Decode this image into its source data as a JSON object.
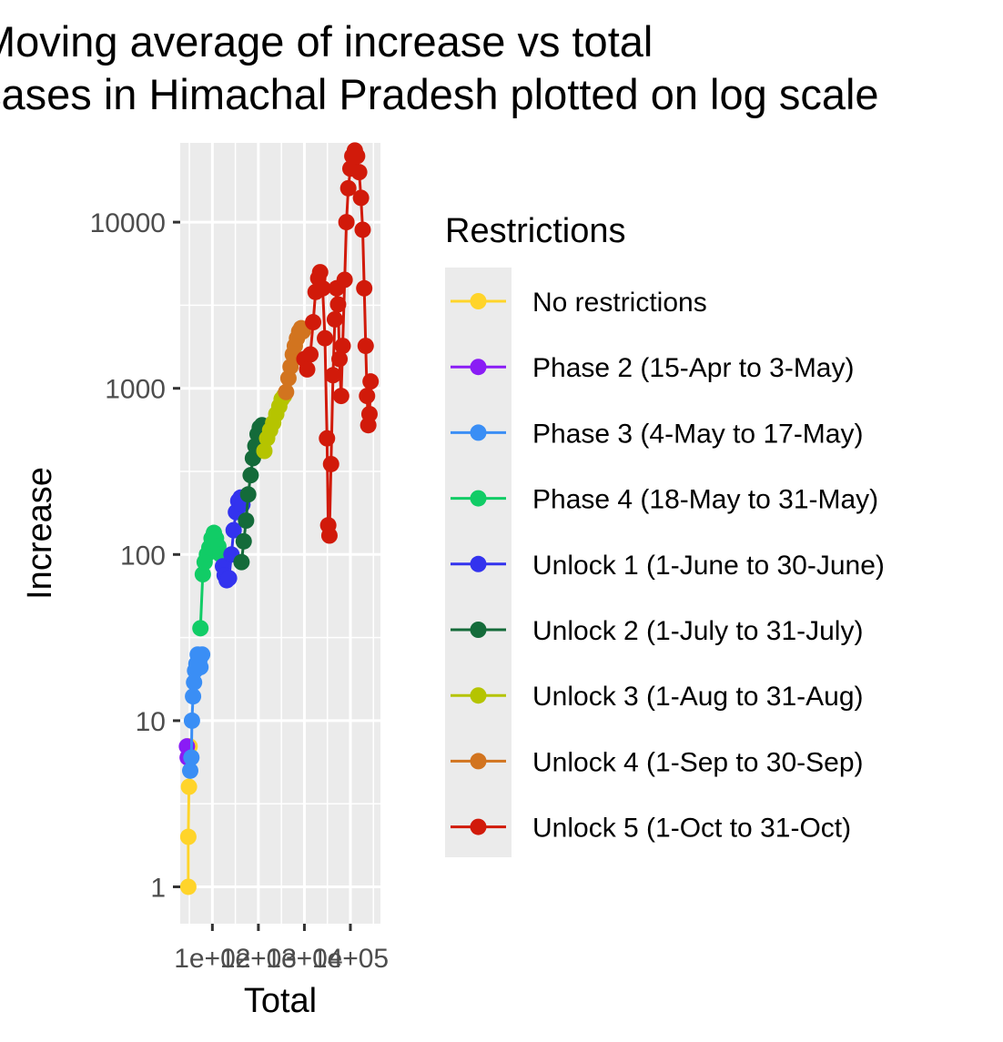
{
  "chart_data": {
    "type": "scatter",
    "title_lines": [
      "Moving average of increase vs total",
      "cases in Himachal Pradesh plotted on log scale"
    ],
    "xlabel": "Total",
    "ylabel": "Increase",
    "x_scale": "log10",
    "y_scale": "log10",
    "xlim": [
      20,
      450000
    ],
    "ylim": [
      0.6,
      30000
    ],
    "x_ticks": [
      100,
      1000,
      10000,
      100000
    ],
    "x_tick_labels": [
      "1e+02",
      "1e+03",
      "1e+04",
      "1e+05"
    ],
    "y_ticks": [
      1,
      10,
      100,
      1000,
      10000
    ],
    "y_tick_labels": [
      "1",
      "10",
      "100",
      "1000",
      "10000"
    ],
    "grid": true,
    "legend": {
      "title": "Restrictions",
      "placement": "right"
    },
    "series": [
      {
        "name": "No restrictions",
        "color": "#ffd42a",
        "points": [
          [
            30,
            1
          ],
          [
            30,
            2
          ],
          [
            31,
            4
          ],
          [
            32,
            6
          ],
          [
            32,
            7
          ]
        ]
      },
      {
        "name": "Phase 2 (15-Apr to 3-May)",
        "color": "#8a1cf5",
        "points": [
          [
            28,
            7
          ],
          [
            29,
            6
          ],
          [
            30,
            6
          ],
          [
            31,
            6
          ],
          [
            32,
            6
          ],
          [
            33,
            6
          ]
        ]
      },
      {
        "name": "Phase 3 (4-May to 17-May)",
        "color": "#3a8ef5",
        "points": [
          [
            33,
            5
          ],
          [
            35,
            6
          ],
          [
            36,
            10
          ],
          [
            38,
            14
          ],
          [
            40,
            17
          ],
          [
            42,
            20
          ],
          [
            45,
            22
          ],
          [
            48,
            25
          ],
          [
            52,
            23
          ],
          [
            55,
            21
          ],
          [
            60,
            25
          ]
        ]
      },
      {
        "name": "Phase 4 (18-May to 31-May)",
        "color": "#11cc66",
        "points": [
          [
            55,
            36
          ],
          [
            62,
            76
          ],
          [
            68,
            90
          ],
          [
            76,
            100
          ],
          [
            86,
            110
          ],
          [
            96,
            125
          ],
          [
            108,
            135
          ],
          [
            120,
            125
          ],
          [
            135,
            112
          ],
          [
            150,
            100
          ]
        ]
      },
      {
        "name": "Unlock 1 (1-June to 30-June)",
        "color": "#3333ee",
        "points": [
          [
            170,
            85
          ],
          [
            185,
            75
          ],
          [
            205,
            70
          ],
          [
            230,
            72
          ],
          [
            260,
            100
          ],
          [
            290,
            140
          ],
          [
            325,
            180
          ],
          [
            365,
            210
          ],
          [
            410,
            220
          ],
          [
            450,
            200
          ]
        ]
      },
      {
        "name": "Unlock 2 (1-July to 31-July)",
        "color": "#146b3a",
        "points": [
          [
            430,
            90
          ],
          [
            480,
            120
          ],
          [
            540,
            160
          ],
          [
            600,
            230
          ],
          [
            680,
            300
          ],
          [
            760,
            380
          ],
          [
            860,
            450
          ],
          [
            960,
            530
          ],
          [
            1070,
            580
          ],
          [
            1200,
            600
          ]
        ]
      },
      {
        "name": "Unlock 3 (1-Aug to 31-Aug)",
        "color": "#b5c400",
        "points": [
          [
            1350,
            420
          ],
          [
            1550,
            500
          ],
          [
            1800,
            560
          ],
          [
            2100,
            620
          ],
          [
            2450,
            700
          ],
          [
            2850,
            780
          ],
          [
            3200,
            860
          ],
          [
            3600,
            900
          ]
        ]
      },
      {
        "name": "Unlock 4 (1-Sep to 30-Sep)",
        "color": "#d2741f",
        "points": [
          [
            4000,
            950
          ],
          [
            4500,
            1150
          ],
          [
            5000,
            1350
          ],
          [
            5600,
            1600
          ],
          [
            6200,
            1800
          ],
          [
            6900,
            2000
          ],
          [
            7700,
            2200
          ],
          [
            8500,
            2300
          ],
          [
            9200,
            2200
          ]
        ]
      },
      {
        "name": "Unlock 5 (1-Oct to 31-Oct)",
        "color": "#d11a0a",
        "points": [
          [
            10000,
            1500
          ],
          [
            11500,
            1300
          ],
          [
            13500,
            1600
          ],
          [
            15500,
            2500
          ],
          [
            17500,
            3800
          ],
          [
            20000,
            4600
          ],
          [
            22000,
            5000
          ],
          [
            25000,
            4000
          ],
          [
            28000,
            2000
          ],
          [
            31000,
            500
          ],
          [
            33000,
            150
          ],
          [
            35000,
            130
          ],
          [
            38000,
            350
          ],
          [
            42000,
            1200
          ],
          [
            46000,
            2600
          ],
          [
            50000,
            4000
          ],
          [
            54000,
            3200
          ],
          [
            58000,
            1500
          ],
          [
            63000,
            900
          ],
          [
            68000,
            1800
          ],
          [
            75000,
            4500
          ],
          [
            82000,
            10000
          ],
          [
            90000,
            16000
          ],
          [
            100000,
            21000
          ],
          [
            110000,
            25000
          ],
          [
            125000,
            27000
          ],
          [
            140000,
            25000
          ],
          [
            155000,
            20000
          ],
          [
            170000,
            14000
          ],
          [
            185000,
            9000
          ],
          [
            200000,
            4000
          ],
          [
            215000,
            1800
          ],
          [
            230000,
            900
          ],
          [
            245000,
            600
          ],
          [
            260000,
            700
          ],
          [
            275000,
            1100
          ]
        ]
      }
    ]
  },
  "colors": {
    "panel_background": "#ebebeb",
    "grid_major": "#ffffff",
    "axis_text": "#4d4d4d"
  }
}
